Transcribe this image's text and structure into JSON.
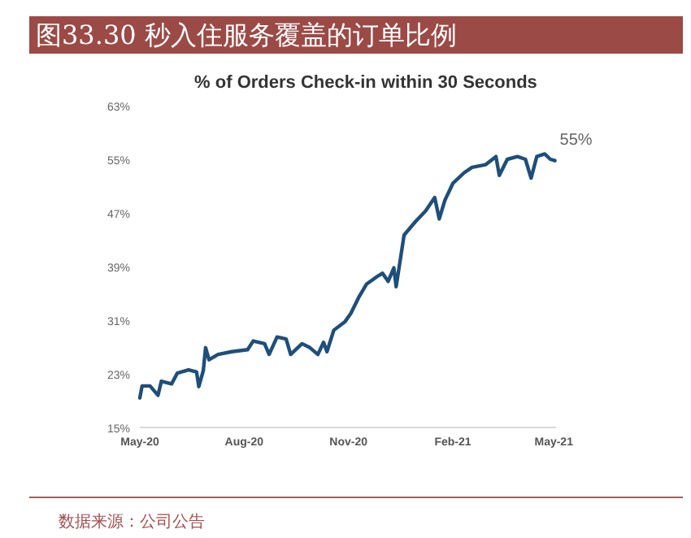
{
  "chart_data": {
    "type": "line",
    "title": "图33.30 秒入住服务覆盖的订单比例",
    "subtitle": "% of Orders Check-in within 30 Seconds",
    "annotations": [
      {
        "text": "55%",
        "x": "2021-05-02",
        "y": 55
      },
      "数据来源：公司公告"
    ],
    "xlim": [
      "2020-05-01",
      "2021-05-03"
    ],
    "xticks": [
      {
        "value": "2020-05-01",
        "label": "May-20"
      },
      {
        "value": "2020-08-01",
        "label": "Aug-20"
      },
      {
        "value": "2020-11-01",
        "label": "Nov-20"
      },
      {
        "value": "2021-02-01",
        "label": "Feb-21"
      },
      {
        "value": "2021-05-01",
        "label": "May-21"
      }
    ],
    "ylim": [
      15,
      63
    ],
    "yticks": [
      {
        "value": 15,
        "label": "15%"
      },
      {
        "value": 23,
        "label": "23%"
      },
      {
        "value": 31,
        "label": "31%"
      },
      {
        "value": 39,
        "label": "39%"
      },
      {
        "value": 47,
        "label": "47%"
      },
      {
        "value": 55,
        "label": "55%"
      },
      {
        "value": 63,
        "label": "63%"
      }
    ],
    "x": [
      "2020-05-01",
      "2020-05-03",
      "2020-05-10",
      "2020-05-17",
      "2020-05-20",
      "2020-05-29",
      "2020-06-03",
      "2020-06-13",
      "2020-06-20",
      "2020-06-22",
      "2020-06-26",
      "2020-06-28",
      "2020-07-01",
      "2020-07-09",
      "2020-07-21",
      "2020-08-04",
      "2020-08-09",
      "2020-08-19",
      "2020-08-23",
      "2020-08-30",
      "2020-09-07",
      "2020-09-11",
      "2020-09-21",
      "2020-09-28",
      "2020-10-05",
      "2020-10-10",
      "2020-10-13",
      "2020-10-19",
      "2020-10-29",
      "2020-11-03",
      "2020-11-10",
      "2020-11-17",
      "2020-11-27",
      "2020-12-01",
      "2020-12-06",
      "2020-12-11",
      "2020-12-13",
      "2020-12-20",
      "2020-12-30",
      "2021-01-08",
      "2021-01-16",
      "2021-01-20",
      "2021-01-25",
      "2021-02-01",
      "2021-02-11",
      "2021-02-18",
      "2021-03-02",
      "2021-03-11",
      "2021-03-14",
      "2021-03-21",
      "2021-03-30",
      "2021-04-06",
      "2021-04-11",
      "2021-04-16",
      "2021-04-23",
      "2021-04-28",
      "2021-05-02"
    ],
    "series": [
      {
        "color": "#1f4e79",
        "values": [
          19.4,
          21.2,
          21.2,
          19.8,
          21.9,
          21.5,
          23.1,
          23.6,
          23.3,
          21.1,
          23.5,
          26.9,
          25.1,
          25.9,
          26.3,
          26.6,
          27.9,
          27.5,
          25.9,
          28.5,
          28.2,
          25.9,
          27.5,
          26.9,
          25.9,
          27.7,
          26.3,
          29.5,
          30.8,
          32.0,
          34.4,
          36.4,
          37.6,
          38.0,
          36.8,
          38.8,
          36.0,
          43.7,
          45.7,
          47.3,
          49.3,
          46.1,
          48.9,
          51.4,
          53.0,
          53.8,
          54.2,
          55.4,
          52.6,
          55.0,
          55.4,
          55.0,
          52.2,
          55.4,
          55.8,
          55.0,
          54.8
        ]
      }
    ]
  }
}
